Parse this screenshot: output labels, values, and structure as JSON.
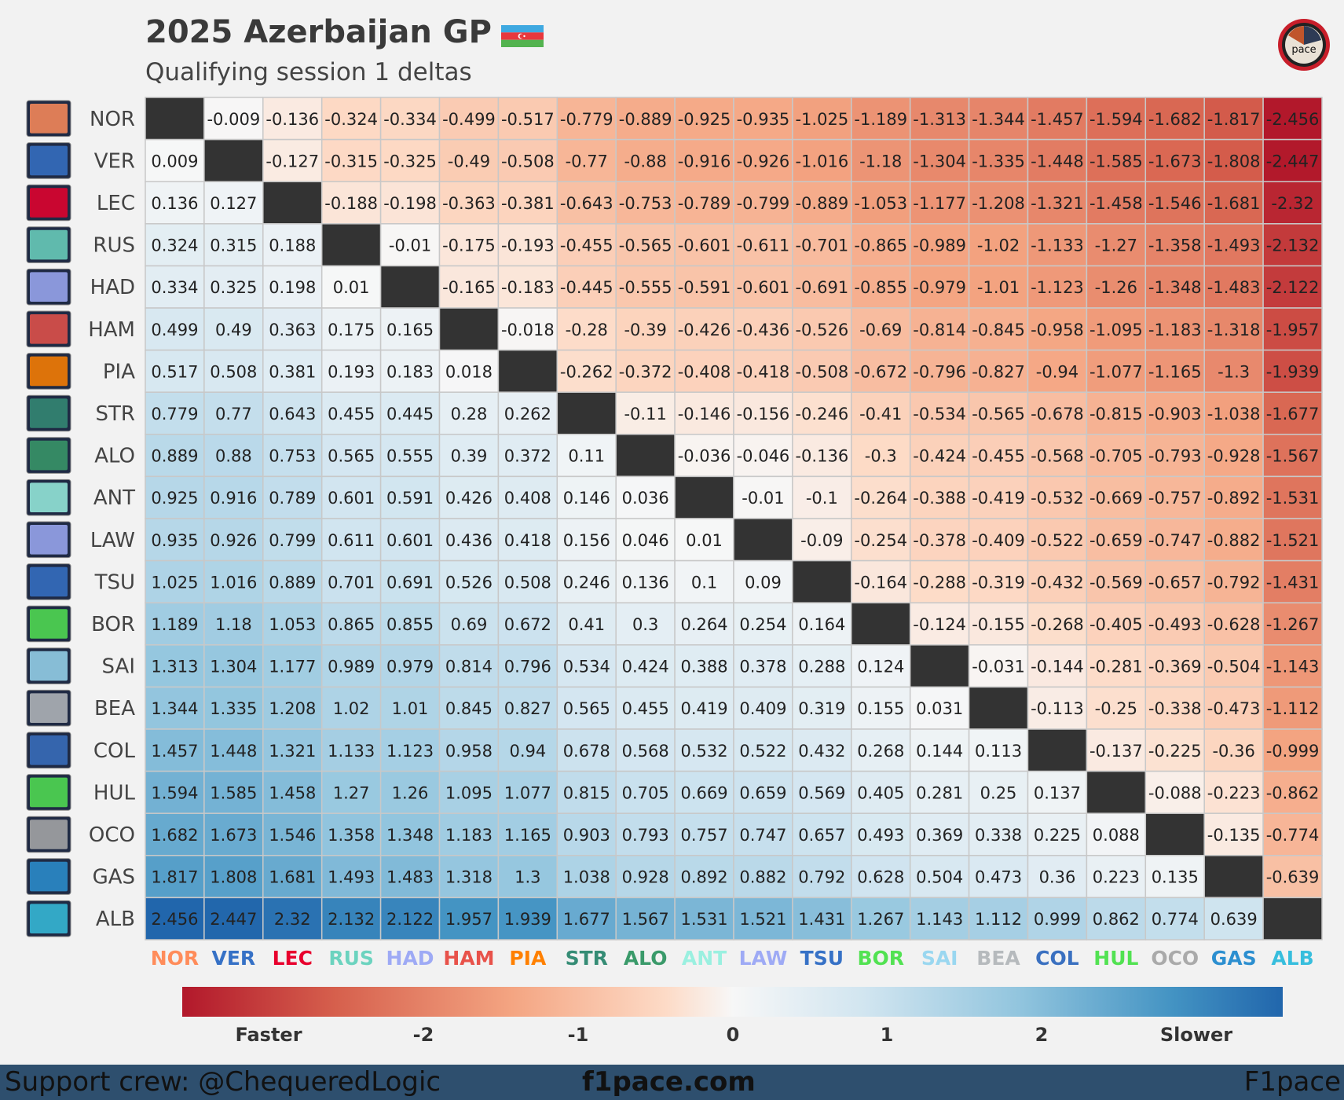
{
  "header": {
    "title": "2025 Azerbaijan GP",
    "subtitle": "Qualifying session 1 deltas"
  },
  "footer": {
    "left": "Support crew: @ChequeredLogic",
    "center": "f1pace.com",
    "right": "F1pace"
  },
  "colorbar": {
    "labels": [
      "Faster",
      "-2",
      "-1",
      "0",
      "1",
      "2",
      "Slower"
    ]
  },
  "chart_data": {
    "type": "heatmap",
    "title": "2025 Azerbaijan GP",
    "subtitle": "Qualifying session 1 deltas",
    "drivers": [
      "NOR",
      "VER",
      "LEC",
      "RUS",
      "HAD",
      "HAM",
      "PIA",
      "STR",
      "ALO",
      "ANT",
      "LAW",
      "TSU",
      "BOR",
      "SAI",
      "BEA",
      "COL",
      "HUL",
      "OCO",
      "GAS",
      "ALB"
    ],
    "teams": [
      "mclaren",
      "redbull",
      "ferrari",
      "mercedes",
      "racingbulls",
      "ferrari",
      "mclaren",
      "astonmartin",
      "astonmartin",
      "mercedes",
      "racingbulls",
      "redbull",
      "sauber",
      "williams",
      "haas",
      "alpine",
      "sauber",
      "haas",
      "alpine",
      "williams"
    ],
    "driver_colors": [
      "#ff8c5a",
      "#3671c6",
      "#e8002d",
      "#6cd3bf",
      "#9eaaf5",
      "#e8524a",
      "#ff8000",
      "#358c75",
      "#3a9a6a",
      "#9af0e0",
      "#9eaaf5",
      "#3671c6",
      "#52e252",
      "#9ad7f0",
      "#b6babd",
      "#3a70c0",
      "#52e252",
      "#aaaaaa",
      "#2c8fd0",
      "#37bedd"
    ],
    "laps": [
      0,
      0.009,
      0.136,
      0.324,
      0.334,
      0.499,
      0.517,
      0.779,
      0.889,
      0.925,
      0.935,
      1.025,
      1.189,
      1.313,
      1.344,
      1.457,
      1.594,
      1.682,
      1.817,
      2.456
    ],
    "vmin": -2.456,
    "vmax": 2.456,
    "note_values": "cell[row][col] = laps[row] - laps[col]; diagonal blank"
  }
}
